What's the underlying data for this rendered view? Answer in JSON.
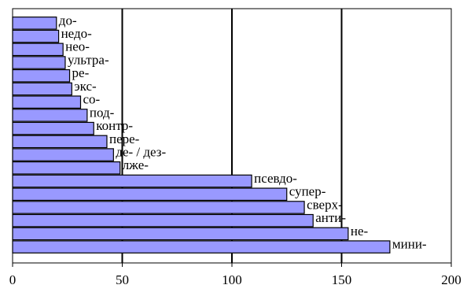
{
  "chart_data": {
    "type": "bar",
    "orientation": "horizontal",
    "categories": [
      "до-",
      "недо-",
      "нео-",
      "ультра-",
      "ре-",
      "экс-",
      "со-",
      "под-",
      "контр-",
      "пере-",
      "де- / дез-",
      "лже-",
      "псевдо-",
      "супер-",
      "сверх-",
      "анти-",
      "не-",
      "мини-"
    ],
    "values": [
      20,
      21,
      23,
      24,
      26,
      27,
      31,
      34,
      37,
      43,
      46,
      49,
      109,
      125,
      133,
      137,
      153,
      172
    ],
    "title": "",
    "xlabel": "",
    "ylabel": "",
    "xlim": [
      0,
      200
    ],
    "xticks": [
      0,
      50,
      100,
      150,
      200
    ],
    "grid": "vertical major lines",
    "bar_color": "#9999ff",
    "bar_edge_color": "#000000",
    "legend": "none"
  }
}
